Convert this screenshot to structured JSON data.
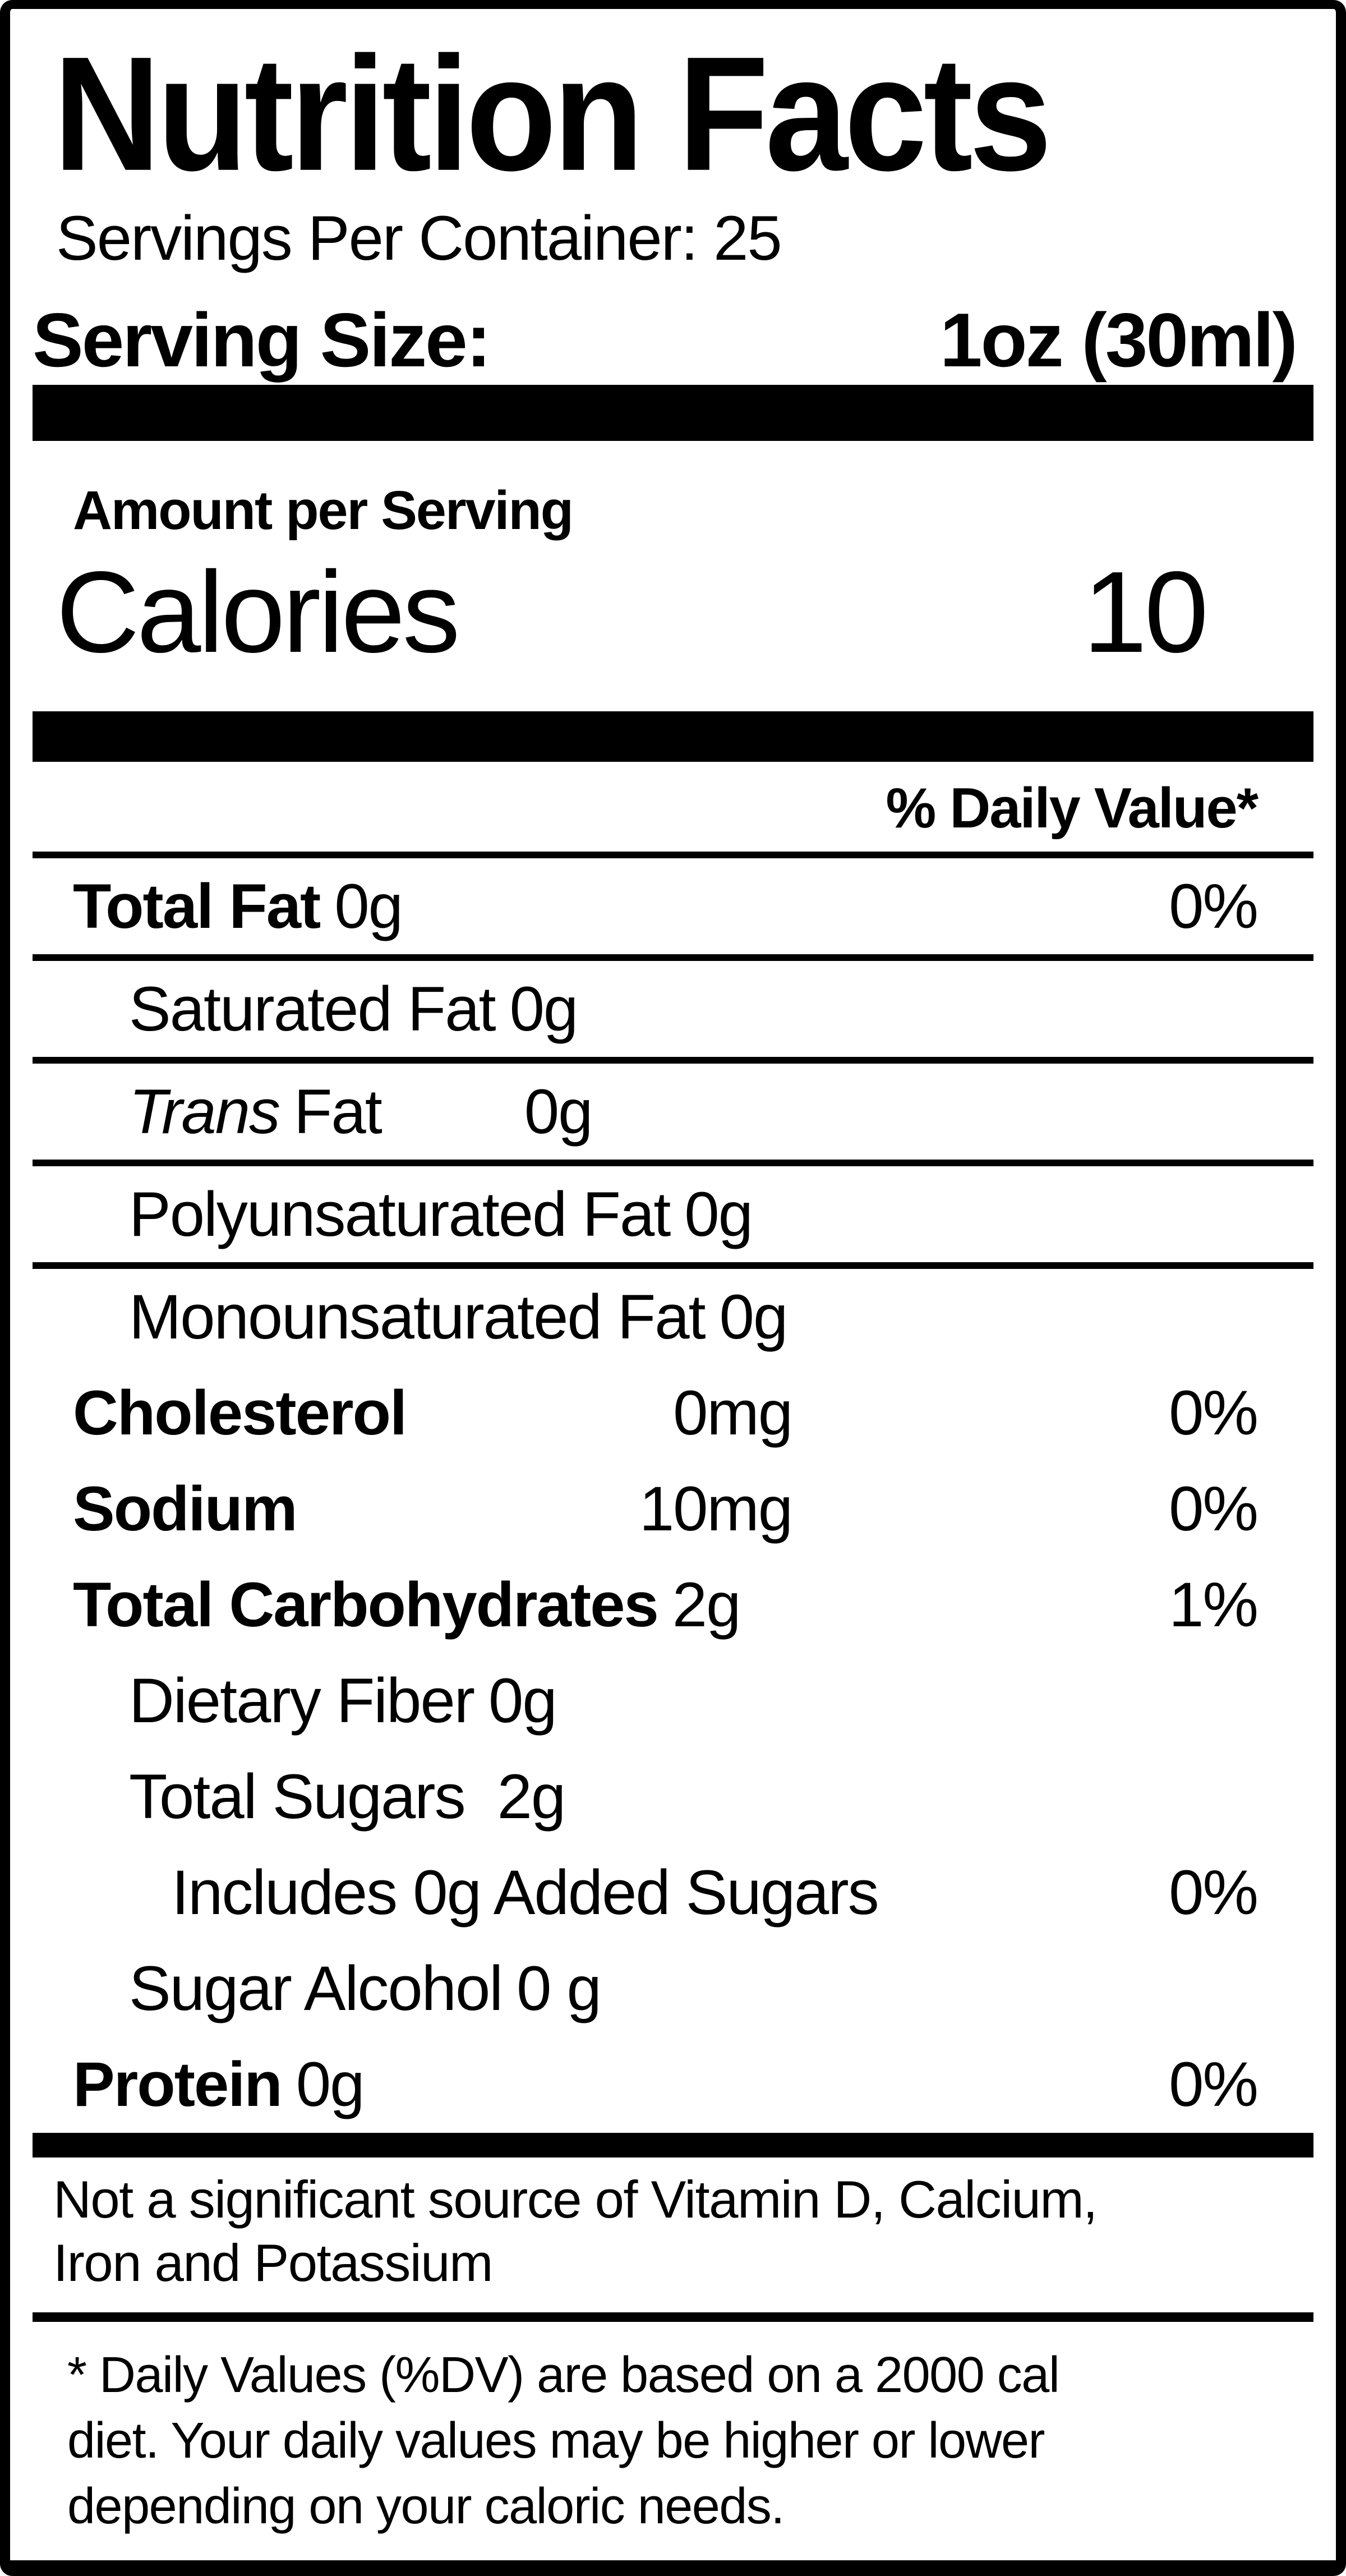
{
  "page": {
    "title": "Nutrition Facts",
    "servings_per_container": "Servings Per Container: 25",
    "serving_size": {
      "label": "Serving Size:",
      "value": "1oz (30ml)"
    },
    "calories": {
      "section_label": "Amount per Serving",
      "label": "Calories",
      "value": "10"
    },
    "daily_value_header": "% Daily Value*",
    "nutrients": [
      {
        "name": "Total Fat",
        "amount": "0g",
        "percent": "0%"
      },
      {
        "name": "Saturated Fat",
        "amount": "0g"
      },
      {
        "name_italic": "Trans",
        "name": "Fat",
        "amount": "0g"
      },
      {
        "name": "Polyunsaturated Fat",
        "amount": "0g"
      },
      {
        "name": "Monounsaturated Fat",
        "amount": "0g"
      },
      {
        "name": "Cholesterol",
        "amount": "0mg",
        "percent": "0%"
      },
      {
        "name": "Sodium",
        "amount": "10mg",
        "percent": "0%"
      },
      {
        "name": "Total Carbohydrates",
        "amount": "2g",
        "percent": "1%"
      },
      {
        "name": "Dietary Fiber",
        "amount": "0g"
      },
      {
        "name": "Total Sugars",
        "amount": "2g"
      },
      {
        "name": "Includes 0g Added Sugars",
        "percent": "0%"
      },
      {
        "name": "Sugar Alcohol",
        "amount": "0 g"
      },
      {
        "name": "Protein",
        "amount": "0g",
        "percent": "0%"
      }
    ],
    "note": {
      "line1": "Not a significant source of Vitamin D, Calcium,",
      "line2": "Iron and Potassium"
    },
    "footnote": {
      "line1": "* Daily Values (%DV) are based on a 2000 cal",
      "line2": "diet. Your daily values may be higher or lower",
      "line3": "depending on your caloric needs."
    },
    "colors": {
      "ink": "#000000",
      "paper": "#ffffff"
    }
  }
}
